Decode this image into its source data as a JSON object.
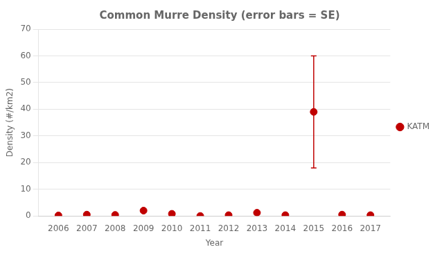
{
  "chart_data": {
    "type": "scatter",
    "title": "Common Murre Density (error bars = SE)",
    "xlabel": "Year",
    "ylabel": "Density (#/km2)",
    "x": [
      2006,
      2007,
      2008,
      2009,
      2010,
      2011,
      2012,
      2013,
      2014,
      2015,
      2016,
      2017
    ],
    "series": [
      {
        "name": "KATM",
        "color": "#C00000",
        "marker": "circle",
        "values": [
          0.2,
          0.5,
          0.4,
          2.0,
          0.8,
          0,
          0.3,
          1.2,
          0.3,
          39.0,
          0.5,
          0.3
        ],
        "error_low": [
          0,
          0,
          0,
          0,
          0,
          0,
          0,
          0,
          0,
          21.0,
          0,
          0
        ],
        "error_high": [
          0,
          0,
          0,
          0,
          0,
          0,
          0,
          0,
          0,
          21.0,
          0,
          0
        ]
      }
    ],
    "xlim": [
      2005.3,
      2017.7
    ],
    "xticks": [
      2006,
      2007,
      2008,
      2009,
      2010,
      2011,
      2012,
      2013,
      2014,
      2015,
      2016,
      2017
    ],
    "ylim": [
      0,
      70
    ],
    "yticks": [
      0,
      10,
      20,
      30,
      40,
      50,
      60,
      70
    ],
    "grid": "y",
    "legend": "right"
  }
}
